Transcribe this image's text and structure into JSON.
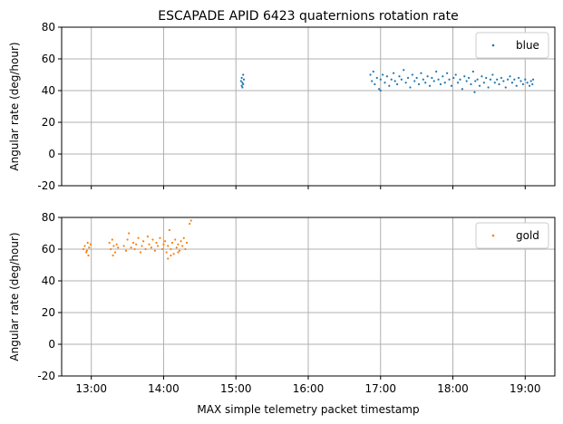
{
  "chart_data": [
    {
      "type": "scatter",
      "title": "ESCAPADE APID 6423 quaternions rotation rate",
      "ylabel": "Angular rate (deg/hour)",
      "xlabel": "",
      "ylim": [
        -20,
        80
      ],
      "yticks": [
        80,
        60,
        40,
        20,
        0,
        -20
      ],
      "grid": true,
      "legend": "top-right",
      "series": [
        {
          "name": "blue",
          "color": "#1f77b4",
          "points": [
            [
              15.07,
              46
            ],
            [
              15.08,
              43
            ],
            [
              15.08,
              48
            ],
            [
              15.09,
              45
            ],
            [
              15.1,
              50
            ],
            [
              15.11,
              47
            ],
            [
              15.09,
              42
            ],
            [
              15.1,
              44
            ],
            [
              16.86,
              50
            ],
            [
              16.88,
              46
            ],
            [
              16.9,
              52
            ],
            [
              16.92,
              44
            ],
            [
              16.95,
              48
            ],
            [
              16.98,
              41
            ],
            [
              17.0,
              47
            ],
            [
              17.03,
              50
            ],
            [
              17.06,
              45
            ],
            [
              17.09,
              49
            ],
            [
              17.12,
              43
            ],
            [
              17.15,
              47
            ],
            [
              17.18,
              51
            ],
            [
              17.2,
              46
            ],
            [
              17.23,
              44
            ],
            [
              17.26,
              49
            ],
            [
              17.29,
              47
            ],
            [
              17.32,
              53
            ],
            [
              17.35,
              45
            ],
            [
              17.38,
              48
            ],
            [
              17.41,
              42
            ],
            [
              17.44,
              50
            ],
            [
              17.47,
              46
            ],
            [
              17.5,
              48
            ],
            [
              17.53,
              44
            ],
            [
              17.56,
              51
            ],
            [
              17.59,
              47
            ],
            [
              17.62,
              45
            ],
            [
              17.65,
              49
            ],
            [
              17.68,
              43
            ],
            [
              17.71,
              48
            ],
            [
              17.74,
              46
            ],
            [
              17.77,
              52
            ],
            [
              17.8,
              47
            ],
            [
              17.83,
              44
            ],
            [
              17.86,
              49
            ],
            [
              17.89,
              45
            ],
            [
              17.92,
              51
            ],
            [
              17.95,
              47
            ],
            [
              17.98,
              43
            ],
            [
              18.01,
              48
            ],
            [
              18.04,
              50
            ],
            [
              18.07,
              45
            ],
            [
              18.1,
              47
            ],
            [
              18.13,
              41
            ],
            [
              18.16,
              49
            ],
            [
              18.19,
              46
            ],
            [
              18.22,
              48
            ],
            [
              18.25,
              44
            ],
            [
              18.28,
              52
            ],
            [
              18.31,
              46
            ],
            [
              18.34,
              47
            ],
            [
              18.37,
              43
            ],
            [
              18.4,
              49
            ],
            [
              18.43,
              45
            ],
            [
              18.46,
              48
            ],
            [
              18.49,
              42
            ],
            [
              18.52,
              47
            ],
            [
              18.55,
              50
            ],
            [
              18.58,
              45
            ],
            [
              18.61,
              47
            ],
            [
              18.64,
              44
            ],
            [
              18.67,
              48
            ],
            [
              18.7,
              46
            ],
            [
              18.73,
              42
            ],
            [
              18.76,
              47
            ],
            [
              18.79,
              49
            ],
            [
              18.82,
              45
            ],
            [
              18.85,
              47
            ],
            [
              18.88,
              43
            ],
            [
              18.91,
              48
            ],
            [
              18.94,
              46
            ],
            [
              18.97,
              44
            ],
            [
              19.0,
              47
            ],
            [
              19.03,
              45
            ],
            [
              19.06,
              43
            ],
            [
              19.08,
              46
            ],
            [
              19.1,
              44
            ],
            [
              19.11,
              47
            ],
            [
              17.0,
              40
            ],
            [
              18.3,
              39
            ]
          ]
        }
      ]
    },
    {
      "type": "scatter",
      "title": "",
      "ylabel": "Angular rate (deg/hour)",
      "xlabel": "MAX simple telemetry packet timestamp",
      "ylim": [
        -20,
        80
      ],
      "yticks": [
        80,
        60,
        40,
        20,
        0,
        -20
      ],
      "xticks": [
        "13:00",
        "14:00",
        "15:00",
        "16:00",
        "17:00",
        "18:00",
        "19:00"
      ],
      "xlim": [
        12.59,
        19.41
      ],
      "grid": true,
      "legend": "top-right",
      "series": [
        {
          "name": "gold",
          "color": "#ff7f0e",
          "points": [
            [
              12.89,
              60
            ],
            [
              12.91,
              62
            ],
            [
              12.93,
              58
            ],
            [
              12.95,
              64
            ],
            [
              12.97,
              61
            ],
            [
              12.99,
              63
            ],
            [
              12.96,
              56
            ],
            [
              12.94,
              59
            ],
            [
              13.25,
              64
            ],
            [
              13.27,
              60
            ],
            [
              13.29,
              66
            ],
            [
              13.31,
              62
            ],
            [
              13.33,
              58
            ],
            [
              13.35,
              63
            ],
            [
              13.37,
              61
            ],
            [
              13.3,
              56
            ],
            [
              13.45,
              62
            ],
            [
              13.48,
              59
            ],
            [
              13.5,
              66
            ],
            [
              13.52,
              70
            ],
            [
              13.55,
              61
            ],
            [
              13.58,
              64
            ],
            [
              13.6,
              60
            ],
            [
              13.62,
              63
            ],
            [
              13.65,
              67
            ],
            [
              13.68,
              58
            ],
            [
              13.7,
              62
            ],
            [
              13.72,
              65
            ],
            [
              13.75,
              60
            ],
            [
              13.78,
              68
            ],
            [
              13.8,
              63
            ],
            [
              13.83,
              61
            ],
            [
              13.85,
              66
            ],
            [
              13.88,
              59
            ],
            [
              13.9,
              64
            ],
            [
              13.92,
              62
            ],
            [
              13.95,
              67
            ],
            [
              13.98,
              60
            ],
            [
              14.0,
              63
            ],
            [
              14.02,
              65
            ],
            [
              14.04,
              58
            ],
            [
              14.06,
              62
            ],
            [
              14.08,
              72
            ],
            [
              14.1,
              60
            ],
            [
              14.12,
              64
            ],
            [
              14.14,
              57
            ],
            [
              14.16,
              66
            ],
            [
              14.18,
              61
            ],
            [
              14.2,
              63
            ],
            [
              14.22,
              59
            ],
            [
              14.24,
              65
            ],
            [
              14.26,
              62
            ],
            [
              14.28,
              67
            ],
            [
              14.3,
              60
            ],
            [
              14.32,
              64
            ],
            [
              14.06,
              54
            ],
            [
              14.1,
              56
            ],
            [
              14.2,
              58
            ],
            [
              14.36,
              76
            ],
            [
              14.38,
              78
            ]
          ]
        }
      ]
    }
  ]
}
